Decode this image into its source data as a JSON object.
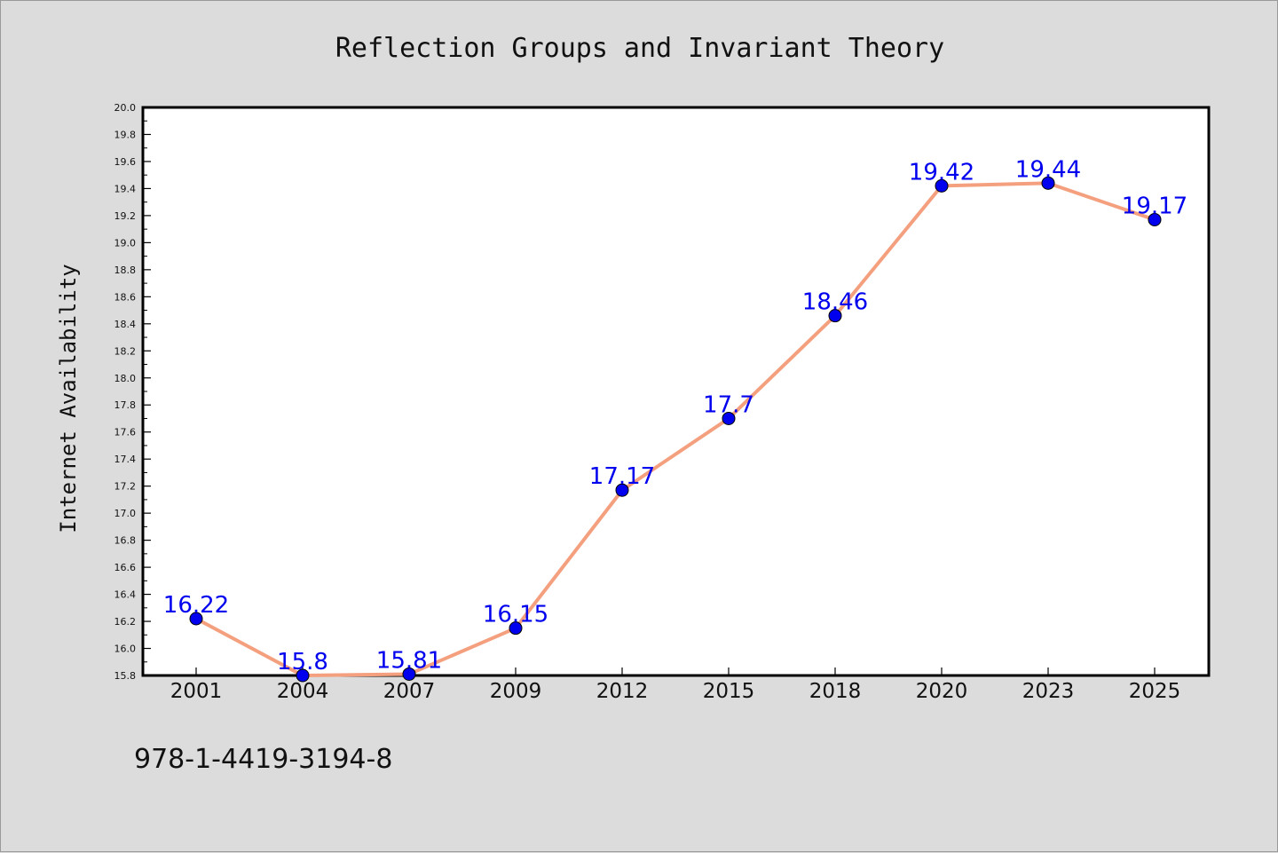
{
  "chart_data": {
    "type": "line",
    "title": "Reflection Groups and Invariant Theory",
    "xlabel": "",
    "ylabel": "Internet Availability",
    "categories": [
      "2001",
      "2004",
      "2007",
      "2009",
      "2012",
      "2015",
      "2018",
      "2020",
      "2023",
      "2025"
    ],
    "series": [
      {
        "values": [
          16.22,
          15.8,
          15.81,
          16.15,
          17.17,
          17.7,
          18.46,
          19.42,
          19.44,
          19.17
        ],
        "data_labels": [
          "16.22",
          "15.8",
          "15.81",
          "16.15",
          "17.17",
          "17.7",
          "18.46",
          "19.42",
          "19.44",
          "19.17"
        ]
      }
    ],
    "ylim": [
      15.8,
      20.0
    ],
    "y_ticks": [
      "15.8",
      "16.0",
      "16.2",
      "16.4",
      "16.6",
      "16.8",
      "17.0",
      "17.2",
      "17.4",
      "17.6",
      "17.8",
      "18.0",
      "18.2",
      "18.4",
      "18.6",
      "18.8",
      "19.0",
      "19.2",
      "19.4",
      "19.6",
      "19.8",
      "20.0"
    ],
    "grid": false,
    "legend": "none",
    "colors": {
      "line": "#f4a07f",
      "marker": "#0000ee",
      "data_label": "#0000ee",
      "plot_background": "#ffffff",
      "figure_background": "#dcdcdc"
    }
  },
  "footer": {
    "isbn": "978-1-4419-3194-8"
  }
}
